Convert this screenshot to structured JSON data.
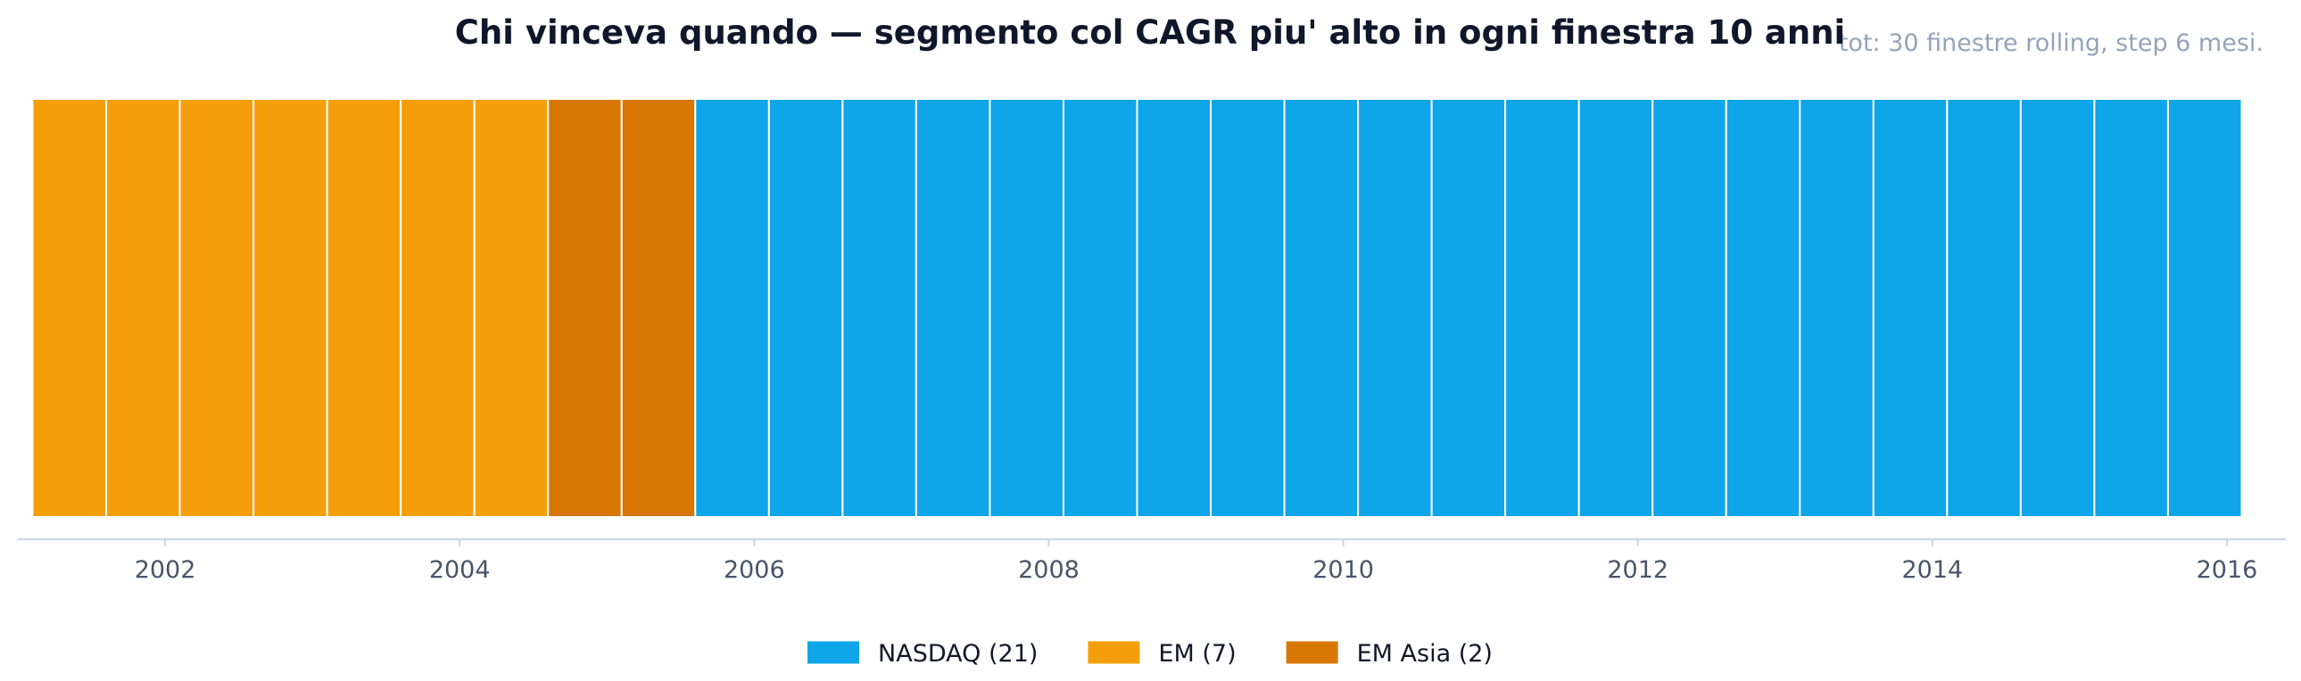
{
  "chart_data": {
    "type": "bar",
    "title": "Chi vinceva quando — segmento col CAGR piu' alto in ogni finestra 10 anni",
    "subtitle": "tot: 30 finestre rolling, step 6 mesi.",
    "xlabel": "",
    "ylabel": "",
    "xlim": [
      2001.0,
      2016.4
    ],
    "xticks": [
      2002,
      2004,
      2006,
      2008,
      2010,
      2012,
      2014,
      2016
    ],
    "window_step_years": 0.5,
    "windows": [
      {
        "start": 2001.1,
        "winner": "EM"
      },
      {
        "start": 2001.6,
        "winner": "EM"
      },
      {
        "start": 2002.1,
        "winner": "EM"
      },
      {
        "start": 2002.6,
        "winner": "EM"
      },
      {
        "start": 2003.1,
        "winner": "EM"
      },
      {
        "start": 2003.6,
        "winner": "EM"
      },
      {
        "start": 2004.1,
        "winner": "EM"
      },
      {
        "start": 2004.6,
        "winner": "EM Asia"
      },
      {
        "start": 2005.1,
        "winner": "EM Asia"
      },
      {
        "start": 2005.6,
        "winner": "NASDAQ"
      },
      {
        "start": 2006.1,
        "winner": "NASDAQ"
      },
      {
        "start": 2006.6,
        "winner": "NASDAQ"
      },
      {
        "start": 2007.1,
        "winner": "NASDAQ"
      },
      {
        "start": 2007.6,
        "winner": "NASDAQ"
      },
      {
        "start": 2008.1,
        "winner": "NASDAQ"
      },
      {
        "start": 2008.6,
        "winner": "NASDAQ"
      },
      {
        "start": 2009.1,
        "winner": "NASDAQ"
      },
      {
        "start": 2009.6,
        "winner": "NASDAQ"
      },
      {
        "start": 2010.1,
        "winner": "NASDAQ"
      },
      {
        "start": 2010.6,
        "winner": "NASDAQ"
      },
      {
        "start": 2011.1,
        "winner": "NASDAQ"
      },
      {
        "start": 2011.6,
        "winner": "NASDAQ"
      },
      {
        "start": 2012.1,
        "winner": "NASDAQ"
      },
      {
        "start": 2012.6,
        "winner": "NASDAQ"
      },
      {
        "start": 2013.1,
        "winner": "NASDAQ"
      },
      {
        "start": 2013.6,
        "winner": "NASDAQ"
      },
      {
        "start": 2014.1,
        "winner": "NASDAQ"
      },
      {
        "start": 2014.6,
        "winner": "NASDAQ"
      },
      {
        "start": 2015.1,
        "winner": "NASDAQ"
      },
      {
        "start": 2015.6,
        "winner": "NASDAQ"
      }
    ],
    "series": [
      {
        "name": "NASDAQ",
        "count": 21,
        "color": "#0ea5e9",
        "legend_label": "NASDAQ (21)"
      },
      {
        "name": "EM",
        "count": 7,
        "color": "#f59e0b",
        "legend_label": "EM (7)"
      },
      {
        "name": "EM Asia",
        "count": 2,
        "color": "#d97706",
        "legend_label": "EM Asia (2)"
      }
    ],
    "legend_placement": "bottom-center",
    "grid": false
  }
}
